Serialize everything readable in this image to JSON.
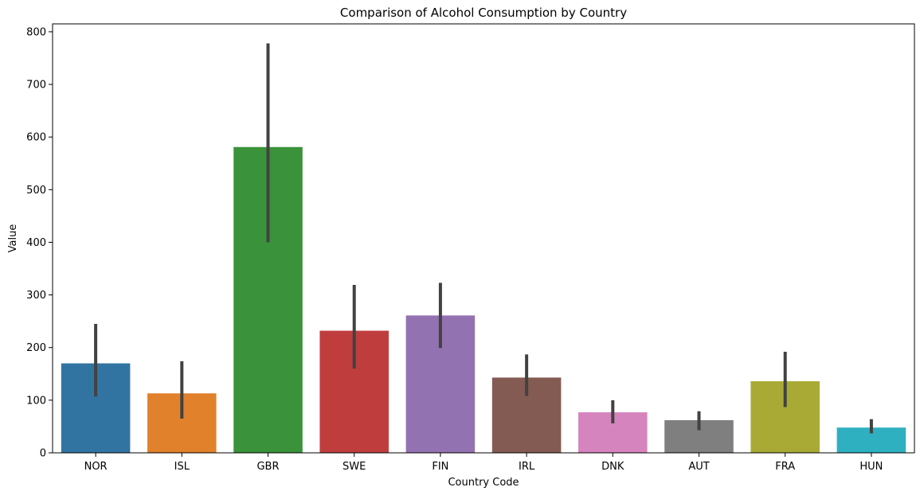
{
  "chart_data": {
    "type": "bar",
    "title": "Comparison of Alcohol Consumption by Country",
    "xlabel": "Country Code",
    "ylabel": "Value",
    "categories": [
      "NOR",
      "ISL",
      "GBR",
      "SWE",
      "FIN",
      "IRL",
      "DNK",
      "AUT",
      "FRA",
      "HUN"
    ],
    "values": [
      170,
      113,
      581,
      232,
      261,
      143,
      77,
      62,
      136,
      48
    ],
    "error_bars": {
      "low": [
        107,
        65,
        400,
        160,
        199,
        108,
        56,
        43,
        87,
        37
      ],
      "high": [
        245,
        174,
        778,
        319,
        323,
        187,
        100,
        79,
        192,
        64
      ]
    },
    "colors": [
      "#3274a1",
      "#e1812c",
      "#3a923a",
      "#c03d3e",
      "#9372b2",
      "#845b53",
      "#d684bd",
      "#7f7f7f",
      "#a9aa35",
      "#2eb0c0"
    ],
    "ylim": [
      0,
      815
    ],
    "yticks": [
      0,
      100,
      200,
      300,
      400,
      500,
      600,
      700,
      800
    ],
    "grid": false,
    "legend": "none"
  }
}
